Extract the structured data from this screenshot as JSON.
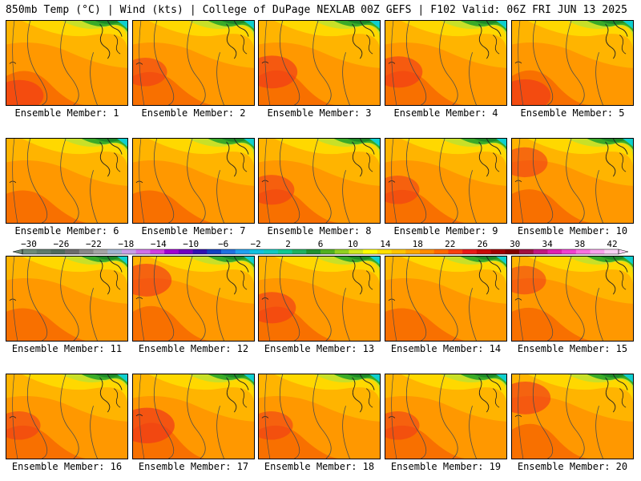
{
  "header": {
    "left": "850mb Temp (°C) | Wind (kts) | College of DuPage NEXLAB",
    "right": "00Z GEFS | F102 Valid: 06Z FRI JUN 13 2025"
  },
  "members": [
    {
      "label": "Ensemble Member: 1",
      "warmth": 0.55,
      "hot_spot": "southwest"
    },
    {
      "label": "Ensemble Member: 2",
      "warmth": 0.45,
      "hot_spot": "west"
    },
    {
      "label": "Ensemble Member: 3",
      "warmth": 0.6,
      "hot_spot": "west"
    },
    {
      "label": "Ensemble Member: 4",
      "warmth": 0.55,
      "hot_spot": "west"
    },
    {
      "label": "Ensemble Member: 5",
      "warmth": 0.6,
      "hot_spot": "southwest"
    },
    {
      "label": "Ensemble Member: 6",
      "warmth": 0.4,
      "hot_spot": "none"
    },
    {
      "label": "Ensemble Member: 7",
      "warmth": 0.4,
      "hot_spot": "none"
    },
    {
      "label": "Ensemble Member: 8",
      "warmth": 0.5,
      "hot_spot": "west"
    },
    {
      "label": "Ensemble Member: 9",
      "warmth": 0.45,
      "hot_spot": "west"
    },
    {
      "label": "Ensemble Member: 10",
      "warmth": 0.5,
      "hot_spot": "northwest"
    },
    {
      "label": "Ensemble Member: 11",
      "warmth": 0.4,
      "hot_spot": "none"
    },
    {
      "label": "Ensemble Member: 12",
      "warmth": 0.6,
      "hot_spot": "northwest"
    },
    {
      "label": "Ensemble Member: 13",
      "warmth": 0.55,
      "hot_spot": "west"
    },
    {
      "label": "Ensemble Member: 14",
      "warmth": 0.4,
      "hot_spot": "none"
    },
    {
      "label": "Ensemble Member: 15",
      "warmth": 0.45,
      "hot_spot": "northwest"
    },
    {
      "label": "Ensemble Member: 16",
      "warmth": 0.45,
      "hot_spot": "west"
    },
    {
      "label": "Ensemble Member: 17",
      "warmth": 0.7,
      "hot_spot": "west"
    },
    {
      "label": "Ensemble Member: 18",
      "warmth": 0.45,
      "hot_spot": "west"
    },
    {
      "label": "Ensemble Member: 19",
      "warmth": 0.45,
      "hot_spot": "west"
    },
    {
      "label": "Ensemble Member: 20",
      "warmth": 0.6,
      "hot_spot": "northwest"
    }
  ],
  "colorbar": {
    "ticks": [
      "−30",
      "−26",
      "−22",
      "−18",
      "−14",
      "−10",
      "−6",
      "−2",
      "2",
      "6",
      "10",
      "14",
      "18",
      "22",
      "26",
      "30",
      "34",
      "38",
      "42"
    ],
    "colors": [
      "#6e8a78",
      "#5e7a6c",
      "#4f6a5e",
      "#6c6c6c",
      "#888888",
      "#a4a4a4",
      "#a0b4d0",
      "#c8a0e8",
      "#d070e8",
      "#d040e0",
      "#a000d0",
      "#7000c0",
      "#3010b0",
      "#1040c0",
      "#2070e0",
      "#20a0f0",
      "#10c0e0",
      "#10c8c0",
      "#10c890",
      "#20b060",
      "#209030",
      "#50b020",
      "#90d020",
      "#d0e820",
      "#ffff00",
      "#ffe000",
      "#ffc400",
      "#ffa800",
      "#ff8c00",
      "#ff6a00",
      "#f84010",
      "#e81818",
      "#c80808",
      "#a00000",
      "#800000",
      "#a01040",
      "#c01880",
      "#e020b0",
      "#f040d0",
      "#f870e0",
      "#f8a0ec",
      "#f8d0f4"
    ]
  },
  "colors": {
    "cold": "#0fcfcf",
    "green_dark": "#1e8a28",
    "green": "#3aaa28",
    "lime": "#c8e028",
    "yellow": "#ffd800",
    "orange_light": "#ffb400",
    "orange": "#ff9800",
    "orange_dark": "#f87000",
    "red": "#f03818",
    "contour": "#4a4a4a",
    "coast": "#202020"
  }
}
